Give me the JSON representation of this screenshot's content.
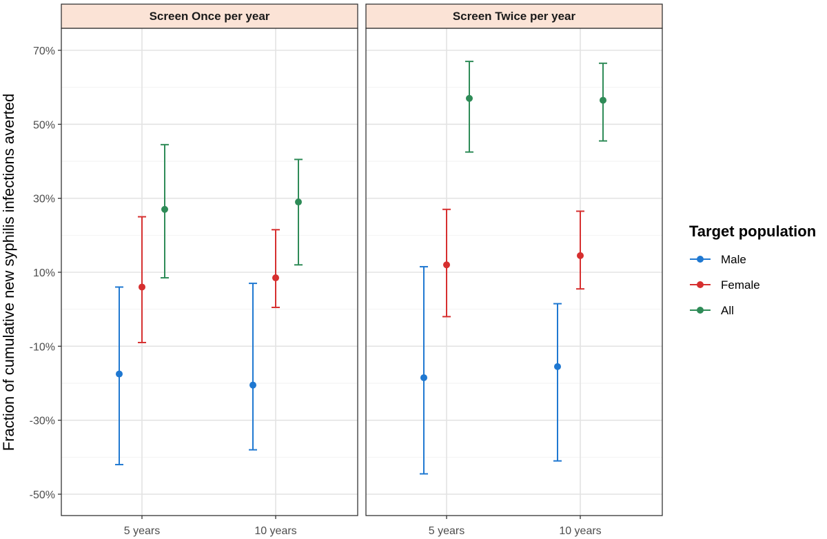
{
  "chart_data": {
    "type": "scatter",
    "ylabel": "Fraction of cumulative new syphilis infections averted",
    "ylim": [
      -55,
      75
    ],
    "y_ticks": [
      70,
      50,
      30,
      10,
      -10,
      -30,
      -50
    ],
    "y_tick_labels": [
      "70%",
      "50%",
      "30%",
      "10%",
      "-10%",
      "-30%",
      "-50%"
    ],
    "categories": [
      "5 years",
      "10 years"
    ],
    "legend": {
      "title": "Target population",
      "position": "right",
      "entries": [
        "Male",
        "Female",
        "All"
      ]
    },
    "colors": {
      "Male": "#1f78d1",
      "Female": "#d62f2f",
      "All": "#2e8b57"
    },
    "grid": true,
    "panels": [
      {
        "title": "Screen Once per year",
        "series": [
          {
            "name": "Male",
            "values": [
              -17.5,
              -20.5
            ],
            "lower": [
              -42,
              -38
            ],
            "upper": [
              6,
              7
            ]
          },
          {
            "name": "Female",
            "values": [
              6,
              8.5
            ],
            "lower": [
              -9,
              0.5
            ],
            "upper": [
              25,
              21.5
            ]
          },
          {
            "name": "All",
            "values": [
              27,
              29
            ],
            "lower": [
              8.5,
              12
            ],
            "upper": [
              44.5,
              40.5
            ]
          }
        ]
      },
      {
        "title": "Screen Twice per year",
        "series": [
          {
            "name": "Male",
            "values": [
              -18.5,
              -15.5
            ],
            "lower": [
              -44.5,
              -41
            ],
            "upper": [
              11.5,
              1.5
            ]
          },
          {
            "name": "Female",
            "values": [
              12,
              14.5
            ],
            "lower": [
              -2,
              5.5
            ],
            "upper": [
              27,
              26.5
            ]
          },
          {
            "name": "All",
            "values": [
              57,
              56.5
            ],
            "lower": [
              42.5,
              45.5
            ],
            "upper": [
              67,
              66.5
            ]
          }
        ]
      }
    ]
  }
}
